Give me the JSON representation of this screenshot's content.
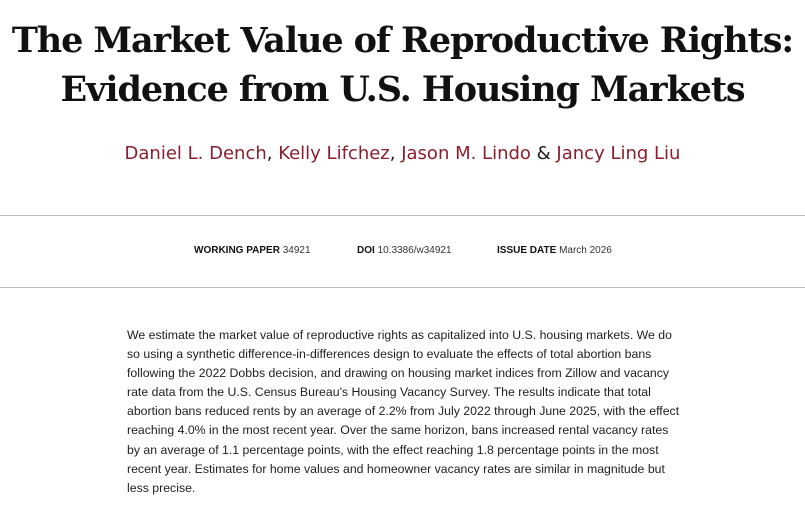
{
  "title": {
    "line1": "The Market Value of Reproductive Rights:",
    "line2": "Evidence from U.S. Housing Markets"
  },
  "authors": [
    {
      "name": "Daniel L. Dench",
      "sep": ", "
    },
    {
      "name": "Kelly Lifchez",
      "sep": ", "
    },
    {
      "name": "Jason M. Lindo",
      "sep": " & "
    },
    {
      "name": "Jancy Ling Liu",
      "sep": ""
    }
  ],
  "meta": {
    "working_paper_label": "WORKING PAPER",
    "working_paper_value": "34921",
    "doi_label": "DOI",
    "doi_value": "10.3386/w34921",
    "issue_date_label": "ISSUE DATE",
    "issue_date_value": "March 2026"
  },
  "abstract": "We estimate the market value of reproductive rights as capitalized into U.S. housing markets. We do so using a synthetic difference-in-differences design to evaluate the effects of total abortion bans following the 2022 Dobbs decision, and drawing on housing market indices from Zillow and vacancy rate data from the U.S. Census Bureau's Housing Vacancy Survey. The results indicate that total abortion bans reduced rents by an average of 2.2% from July 2022 through June 2025, with the effect reaching 4.0% in the most recent year. Over the same horizon, bans increased rental vacancy rates by an average of 1.1 percentage points, with the effect reaching 1.8 percentage points in the most recent year. Estimates for home values and homeowner vacancy rates are similar in magnitude but less precise.",
  "colors": {
    "author_link": "#8b1e2d",
    "divider": "#bdbdbd",
    "title": "#111111"
  }
}
